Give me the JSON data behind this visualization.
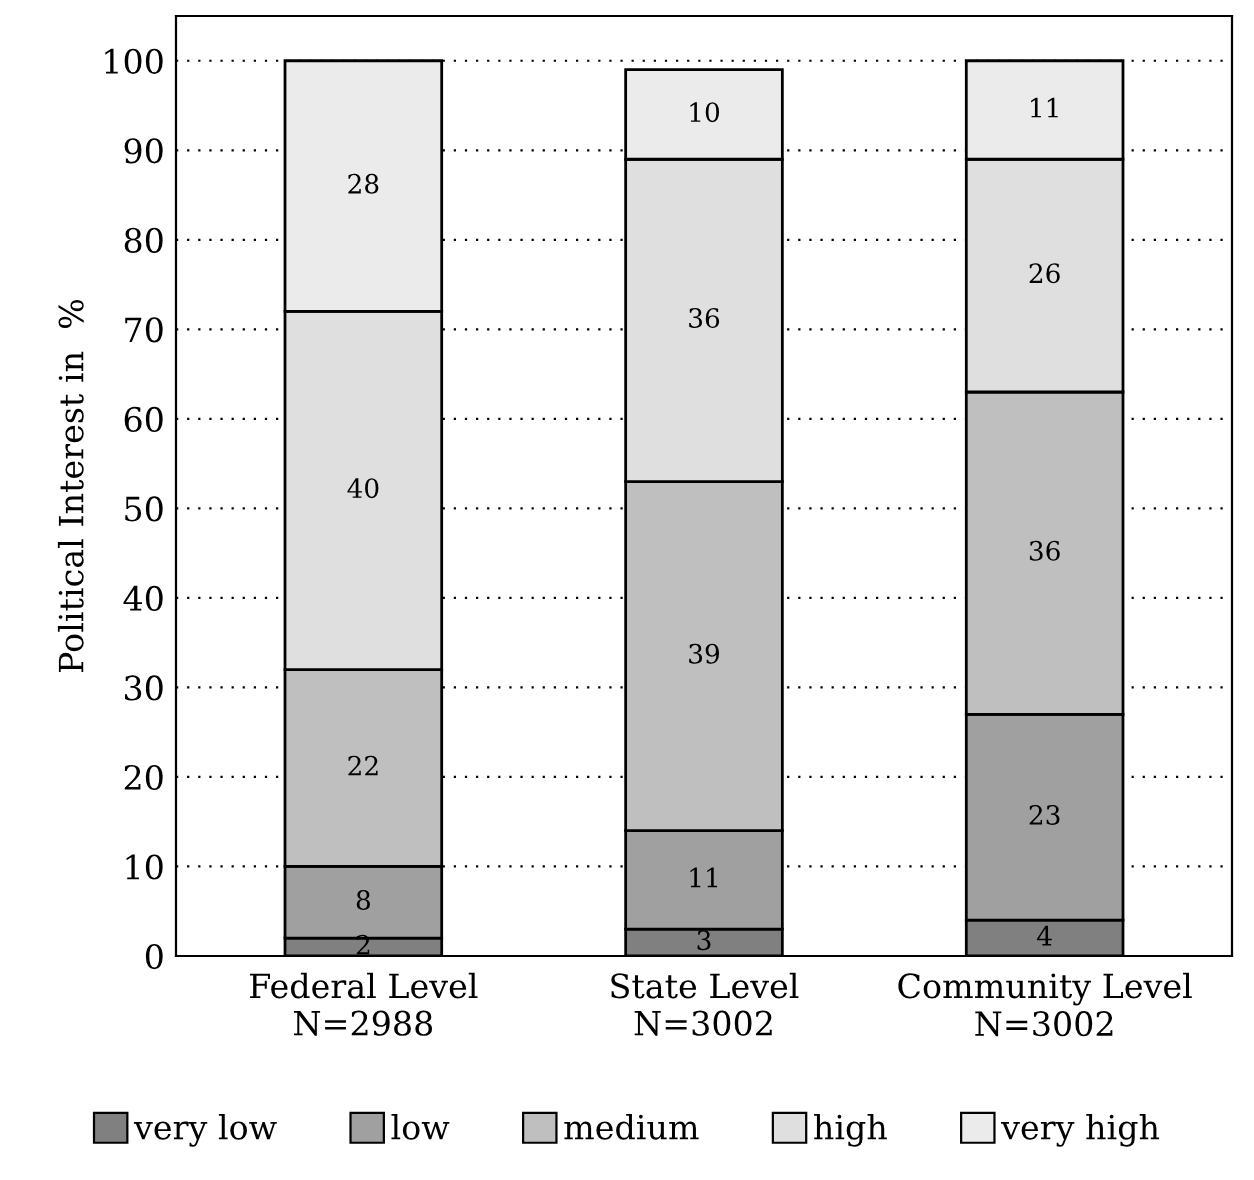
{
  "chart_data": {
    "type": "bar",
    "stacked": true,
    "ylabel": "Political Interest in  %",
    "categories": [
      "Federal Level\nN=2988",
      "State Level\nN=3002",
      "Community Level\nN=3002"
    ],
    "series": [
      {
        "name": "very low",
        "color": "#808080",
        "values": [
          2,
          3,
          4
        ]
      },
      {
        "name": "low",
        "color": "#a0a0a0",
        "values": [
          8,
          11,
          23
        ]
      },
      {
        "name": "medium",
        "color": "#bfbfbf",
        "values": [
          22,
          39,
          36
        ]
      },
      {
        "name": "high",
        "color": "#dfdfdf",
        "values": [
          40,
          36,
          26
        ]
      },
      {
        "name": "very high",
        "color": "#ebebeb",
        "values": [
          28,
          10,
          11
        ]
      }
    ],
    "ylim": [
      0,
      105
    ],
    "yticks": [
      0,
      10,
      20,
      30,
      40,
      50,
      60,
      70,
      80,
      90,
      100
    ],
    "grid": "y",
    "legend": "bottom",
    "data_labels": true
  }
}
